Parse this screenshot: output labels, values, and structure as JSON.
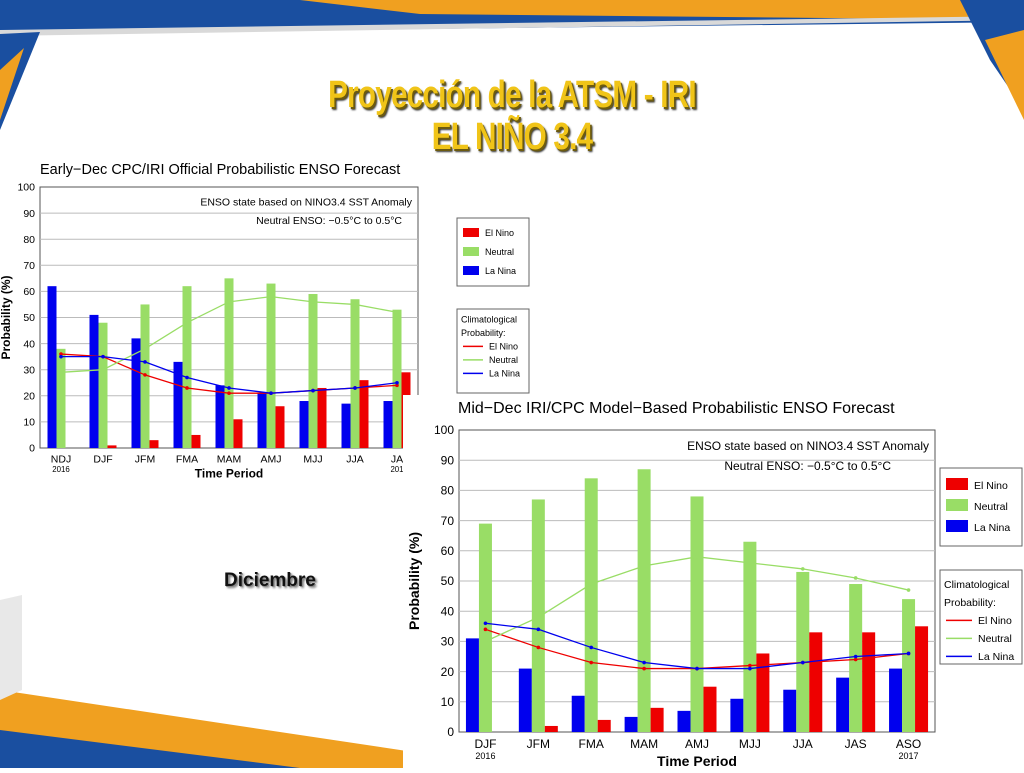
{
  "slide": {
    "title_line1": "Proyección de la ATSM - IRI",
    "title_line2": "EL NIÑO 3.4",
    "month_label": "Diciembre",
    "colors": {
      "title": "#f0c418",
      "banner_blue": "#1a4fa0",
      "banner_orange": "#f0a020"
    }
  },
  "chart_data": [
    {
      "type": "bar",
      "title": "Early−Dec CPC/IRI Official Probabilistic ENSO Forecast",
      "annotation1": "ENSO state based on NINO3.4 SST Anomaly",
      "annotation2": "Neutral ENSO: −0.5°C to 0.5°C",
      "xlabel": "Time Period",
      "ylabel": "Probability (%)",
      "ylim": [
        0,
        100
      ],
      "yticks": [
        0,
        10,
        20,
        30,
        40,
        50,
        60,
        70,
        80,
        90,
        100
      ],
      "categories": [
        "NDJ",
        "DJF",
        "JFM",
        "FMA",
        "MAM",
        "AMJ",
        "MJJ",
        "JJA",
        "JA"
      ],
      "year_labels": [
        "2016",
        "",
        "",
        "",
        "",
        "",
        "",
        "",
        "201"
      ],
      "series": [
        {
          "name": "La Nina",
          "color": "#0000ee",
          "values": [
            62,
            51,
            42,
            33,
            24,
            21,
            18,
            17,
            18
          ]
        },
        {
          "name": "Neutral",
          "color": "#99dd66",
          "values": [
            38,
            48,
            55,
            62,
            65,
            63,
            59,
            57,
            53
          ]
        },
        {
          "name": "El Nino",
          "color": "#ee0000",
          "values": [
            0,
            1,
            3,
            5,
            11,
            16,
            23,
            26,
            29
          ]
        }
      ],
      "legend_title1": "Climatological",
      "legend_title2": "Probability:",
      "climatology": [
        {
          "name": "El Nino",
          "color": "#ee0000",
          "values": [
            36,
            35,
            28,
            23,
            21,
            21,
            22,
            23,
            24
          ]
        },
        {
          "name": "Neutral",
          "color": "#99dd66",
          "values": [
            29,
            30,
            38,
            48,
            56,
            58,
            56,
            55,
            52
          ]
        },
        {
          "name": "La Nina",
          "color": "#0000ee",
          "values": [
            35,
            35,
            33,
            27,
            23,
            21,
            22,
            23,
            25
          ]
        }
      ],
      "legend_placement": "right"
    },
    {
      "type": "bar",
      "title": "Mid−Dec IRI/CPC Model−Based Probabilistic ENSO Forecast",
      "annotation1": "ENSO state based on NINO3.4 SST Anomaly",
      "annotation2": "Neutral ENSO: −0.5°C to 0.5°C",
      "xlabel": "Time Period",
      "ylabel": "Probability (%)",
      "ylim": [
        0,
        100
      ],
      "yticks": [
        0,
        10,
        20,
        30,
        40,
        50,
        60,
        70,
        80,
        90,
        100
      ],
      "categories": [
        "DJF",
        "JFM",
        "FMA",
        "MAM",
        "AMJ",
        "MJJ",
        "JJA",
        "JAS",
        "ASO"
      ],
      "year_labels": [
        "2016",
        "",
        "",
        "",
        "",
        "",
        "",
        "",
        "2017"
      ],
      "series": [
        {
          "name": "La Nina",
          "color": "#0000ee",
          "values": [
            31,
            21,
            12,
            5,
            7,
            11,
            14,
            18,
            21
          ]
        },
        {
          "name": "Neutral",
          "color": "#99dd66",
          "values": [
            69,
            77,
            84,
            87,
            78,
            63,
            53,
            49,
            44
          ]
        },
        {
          "name": "El Nino",
          "color": "#ee0000",
          "values": [
            0,
            2,
            4,
            8,
            15,
            26,
            33,
            33,
            35
          ]
        }
      ],
      "legend_title1": "Climatological",
      "legend_title2": "Probability:",
      "climatology": [
        {
          "name": "El Nino",
          "color": "#ee0000",
          "values": [
            34,
            28,
            23,
            21,
            21,
            22,
            23,
            24,
            26
          ]
        },
        {
          "name": "Neutral",
          "color": "#99dd66",
          "values": [
            30,
            38,
            49,
            55,
            58,
            56,
            54,
            51,
            47
          ]
        },
        {
          "name": "La Nina",
          "color": "#0000ee",
          "values": [
            36,
            34,
            28,
            23,
            21,
            21,
            23,
            25,
            26
          ]
        }
      ],
      "legend_placement": "right"
    }
  ]
}
